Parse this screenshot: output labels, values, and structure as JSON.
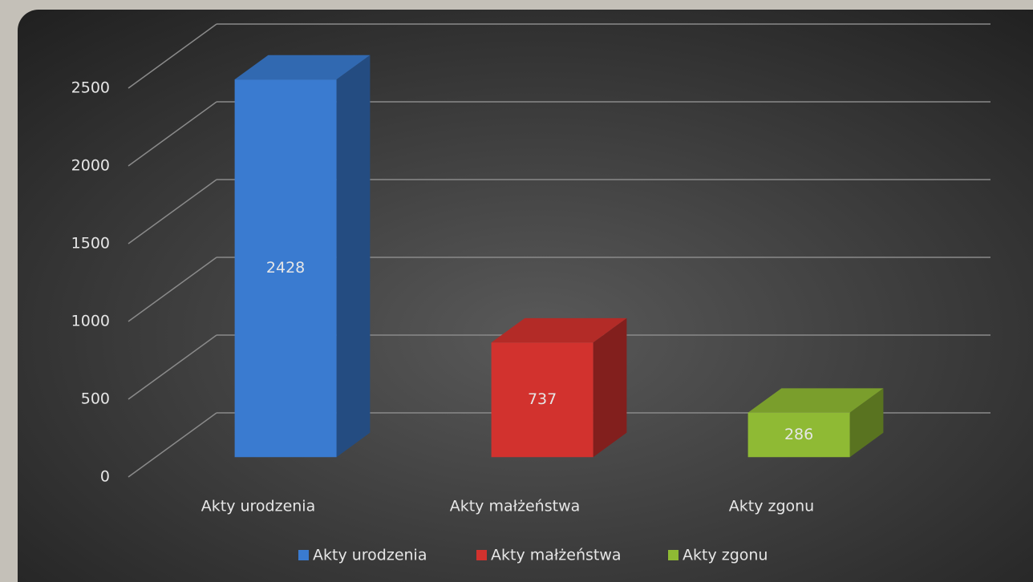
{
  "chart_data": {
    "type": "bar3d",
    "categories": [
      "Akty urodzenia",
      "Akty małżeństwa",
      "Akty zgonu"
    ],
    "values": [
      2428,
      737,
      286
    ],
    "colors": [
      "#3a7bd0",
      "#d2322e",
      "#8fba34"
    ],
    "ylim": [
      0,
      2500
    ],
    "yticks": [
      0,
      500,
      1000,
      1500,
      2000,
      2500
    ],
    "grid": true,
    "legend": "bottom"
  }
}
